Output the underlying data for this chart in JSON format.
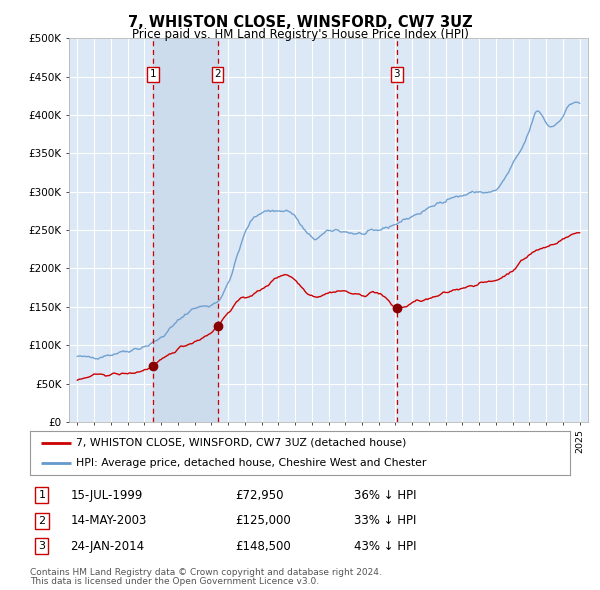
{
  "title": "7, WHISTON CLOSE, WINSFORD, CW7 3UZ",
  "subtitle": "Price paid vs. HM Land Registry's House Price Index (HPI)",
  "background_color": "#ffffff",
  "plot_bg_color": "#dce8f5",
  "grid_color": "#ffffff",
  "transactions": [
    {
      "num": 1,
      "date_label": "15-JUL-1999",
      "date_x": 1999.54,
      "price": 72950,
      "pct": "36% ↓ HPI"
    },
    {
      "num": 2,
      "date_label": "14-MAY-2003",
      "date_x": 2003.37,
      "price": 125000,
      "pct": "33% ↓ HPI"
    },
    {
      "num": 3,
      "date_label": "24-JAN-2014",
      "date_x": 2014.07,
      "price": 148500,
      "pct": "43% ↓ HPI"
    }
  ],
  "legend_line1": "7, WHISTON CLOSE, WINSFORD, CW7 3UZ (detached house)",
  "legend_line2": "HPI: Average price, detached house, Cheshire West and Chester",
  "footnote1": "Contains HM Land Registry data © Crown copyright and database right 2024.",
  "footnote2": "This data is licensed under the Open Government Licence v3.0.",
  "hpi_color": "#6699cc",
  "price_color": "#cc0000",
  "marker_color": "#880000",
  "dashed_color": "#cc0000",
  "shade_color": "#cddcec",
  "ylim_max": 500000,
  "xlim_min": 1994.5,
  "xlim_max": 2025.5,
  "yticks": [
    0,
    50000,
    100000,
    150000,
    200000,
    250000,
    300000,
    350000,
    400000,
    450000,
    500000
  ],
  "ylabels": [
    "£0",
    "£50K",
    "£100K",
    "£150K",
    "£200K",
    "£250K",
    "£300K",
    "£350K",
    "£400K",
    "£450K",
    "£500K"
  ]
}
